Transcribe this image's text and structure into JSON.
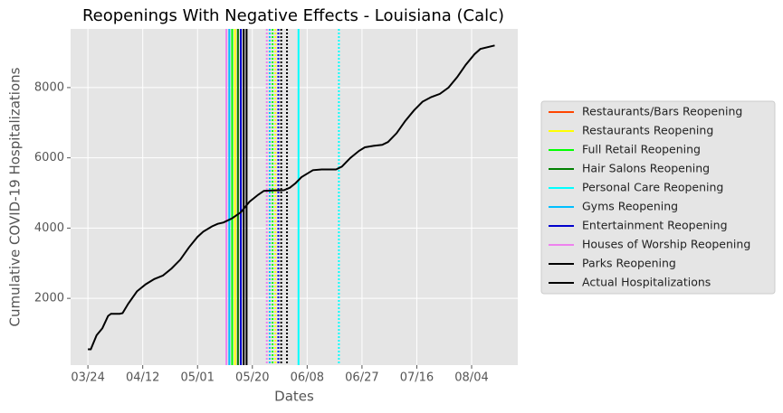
{
  "chart_data": {
    "type": "line",
    "title": "Reopenings With Negative Effects - Louisiana (Calc)",
    "x_label": "Dates",
    "y_label": "Cumulative COVID-19 Hospitalizations",
    "grid": true,
    "legend": "outside right",
    "xlim": [
      "03/18",
      "08/20"
    ],
    "xticks": [
      "03/24",
      "04/12",
      "05/01",
      "05/20",
      "06/08",
      "06/27",
      "07/16",
      "08/04"
    ],
    "ylim": [
      100,
      9670
    ],
    "yticks": [
      2000,
      4000,
      6000,
      8000
    ],
    "series": [
      {
        "name": "Restaurants/Bars Reopening",
        "color": "#ff4500",
        "dates": [
          "05/15"
        ],
        "dotted_dates": []
      },
      {
        "name": "Restaurants Reopening",
        "color": "#ffff00",
        "dates": [
          "05/14"
        ],
        "dotted_dates": [
          "05/28"
        ]
      },
      {
        "name": "Full Retail Reopening",
        "color": "#00ff00",
        "dates": [
          "05/13"
        ],
        "dotted_dates": [
          "05/27"
        ]
      },
      {
        "name": "Hair Salons Reopening",
        "color": "#008000",
        "dates": [
          "05/15"
        ],
        "dotted_dates": []
      },
      {
        "name": "Personal Care Reopening",
        "color": "#00ffff",
        "dates": [
          "06/05"
        ],
        "dotted_dates": [
          "06/19"
        ]
      },
      {
        "name": "Gyms Reopening",
        "color": "#00bfff",
        "dates": [
          "05/12"
        ],
        "dotted_dates": [
          "05/26"
        ]
      },
      {
        "name": "Entertainment Reopening",
        "color": "#0000cd",
        "dates": [
          "05/16"
        ],
        "dotted_dates": [
          "05/29"
        ]
      },
      {
        "name": "Houses of Worship Reopening",
        "color": "#ee82ee",
        "dates": [
          "05/11"
        ],
        "dotted_dates": [
          "05/25"
        ]
      },
      {
        "name": "Parks Reopening",
        "color": "#000000",
        "dates": [
          "05/17",
          "05/18"
        ],
        "dotted_dates": [
          "05/30",
          "06/01"
        ]
      }
    ],
    "line": {
      "name": "Actual Hospitalizations",
      "color": "#000000",
      "x": [
        "03/24",
        "03/25",
        "03/27",
        "03/29",
        "03/31",
        "04/01",
        "04/04",
        "04/05",
        "04/07",
        "04/10",
        "04/13",
        "04/16",
        "04/19",
        "04/22",
        "04/25",
        "04/28",
        "05/01",
        "05/03",
        "05/06",
        "05/08",
        "05/10",
        "05/13",
        "05/16",
        "05/19",
        "05/22",
        "05/24",
        "05/27",
        "05/31",
        "06/02",
        "06/04",
        "06/06",
        "06/08",
        "06/10",
        "06/13",
        "06/18",
        "06/20",
        "06/23",
        "06/26",
        "06/28",
        "07/01",
        "07/04",
        "07/06",
        "07/09",
        "07/12",
        "07/15",
        "07/18",
        "07/21",
        "07/24",
        "07/27",
        "07/30",
        "08/02",
        "08/05",
        "08/07",
        "08/12"
      ],
      "values": [
        550,
        550,
        950,
        1150,
        1500,
        1560,
        1560,
        1580,
        1850,
        2200,
        2400,
        2550,
        2650,
        2850,
        3100,
        3450,
        3750,
        3900,
        4050,
        4120,
        4160,
        4280,
        4450,
        4750,
        4950,
        5060,
        5070,
        5080,
        5150,
        5280,
        5450,
        5550,
        5650,
        5670,
        5670,
        5750,
        6000,
        6200,
        6300,
        6340,
        6370,
        6450,
        6700,
        7050,
        7350,
        7600,
        7730,
        7820,
        8000,
        8300,
        8650,
        8950,
        9100,
        9200
      ]
    }
  }
}
